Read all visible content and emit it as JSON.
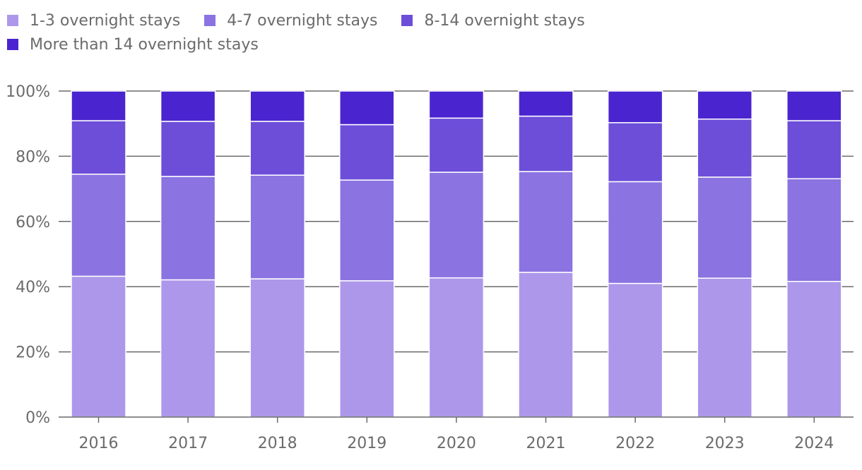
{
  "chart_data": {
    "type": "bar",
    "stacked": true,
    "categories": [
      "2016",
      "2017",
      "2018",
      "2019",
      "2020",
      "2021",
      "2022",
      "2023",
      "2024"
    ],
    "series": [
      {
        "name": "1-3 overnight stays",
        "color": "#ad97ea",
        "values": [
          43.2,
          42.1,
          42.4,
          41.8,
          42.7,
          44.4,
          41.0,
          42.6,
          41.6
        ]
      },
      {
        "name": "4-7 overnight stays",
        "color": "#8b73e2",
        "values": [
          31.3,
          31.7,
          31.8,
          30.9,
          32.4,
          30.9,
          31.2,
          31.0,
          31.5
        ]
      },
      {
        "name": "8-14 overnight stays",
        "color": "#6d4ed9",
        "values": [
          16.4,
          16.9,
          16.5,
          17.0,
          16.6,
          17.0,
          18.1,
          17.8,
          17.8
        ]
      },
      {
        "name": "More than 14 overnight stays",
        "color": "#4a25cf",
        "values": [
          9.1,
          9.3,
          9.3,
          10.3,
          8.3,
          7.7,
          9.7,
          8.6,
          9.1
        ]
      }
    ],
    "y_ticks": [
      "0%",
      "20%",
      "40%",
      "60%",
      "80%",
      "100%"
    ],
    "ylim": [
      0,
      100
    ],
    "title": "",
    "xlabel": "",
    "ylabel": "",
    "grid": true,
    "legend_position": "top-left"
  }
}
